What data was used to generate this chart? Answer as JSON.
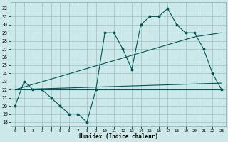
{
  "xlabel": "Humidex (Indice chaleur)",
  "background_color": "#cce8e8",
  "grid_color": "#9bbfbf",
  "line_color": "#005555",
  "xlim": [
    -0.5,
    23.5
  ],
  "ylim": [
    17.5,
    32.8
  ],
  "xticks": [
    0,
    1,
    2,
    3,
    4,
    5,
    6,
    7,
    8,
    9,
    10,
    11,
    12,
    13,
    14,
    15,
    16,
    17,
    18,
    19,
    20,
    21,
    22,
    23
  ],
  "yticks": [
    18,
    19,
    20,
    21,
    22,
    23,
    24,
    25,
    26,
    27,
    28,
    29,
    30,
    31,
    32
  ],
  "line1_x": [
    0,
    1,
    2,
    3,
    4,
    5,
    6,
    7,
    8,
    9,
    10,
    11,
    12,
    13,
    14,
    15,
    16,
    17,
    18,
    19,
    20,
    21,
    22,
    23
  ],
  "line1_y": [
    20,
    23,
    22,
    22,
    21,
    20,
    19,
    19,
    18,
    22,
    29,
    29,
    27,
    24.5,
    30,
    31,
    31,
    32,
    30,
    29,
    29,
    27,
    24,
    22
  ],
  "line2_x": [
    0,
    1,
    2,
    3,
    4,
    5,
    6,
    7,
    8,
    9,
    10,
    11,
    12,
    13,
    14,
    15,
    16,
    17,
    18,
    19,
    20,
    21,
    22,
    23
  ],
  "line2_y": [
    22,
    22,
    22,
    22,
    22,
    22,
    22,
    22,
    22,
    22,
    22,
    22,
    22,
    22,
    22,
    22,
    22,
    22,
    22,
    22,
    22,
    22,
    22,
    22
  ],
  "line3_x": [
    0,
    20,
    23
  ],
  "line3_y": [
    22,
    28.5,
    29
  ],
  "line4_x": [
    0,
    23
  ],
  "line4_y": [
    22,
    22.8
  ]
}
